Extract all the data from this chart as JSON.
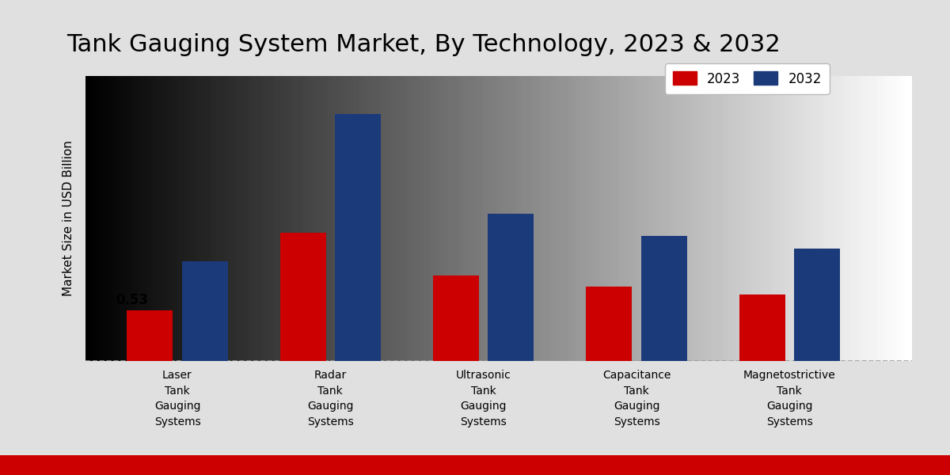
{
  "title": "Tank Gauging System Market, By Technology, 2023 & 2032",
  "ylabel": "Market Size in USD Billion",
  "categories": [
    "Laser\nTank\nGauging\nSystems",
    "Radar\nTank\nGauging\nSystems",
    "Ultrasonic\nTank\nGauging\nSystems",
    "Capacitance\nTank\nGauging\nSystems",
    "Magnetostrictive\nTank\nGauging\nSystems"
  ],
  "values_2023": [
    0.53,
    1.35,
    0.9,
    0.78,
    0.7
  ],
  "values_2032": [
    1.05,
    2.6,
    1.55,
    1.32,
    1.18
  ],
  "color_2023": "#cc0000",
  "color_2032": "#1a3a7a",
  "bar_annotation": "0.53",
  "annotation_bar_idx": 0,
  "legend_labels": [
    "2023",
    "2032"
  ],
  "title_fontsize": 22,
  "ylabel_fontsize": 11,
  "tick_fontsize": 10,
  "bar_width": 0.3,
  "ylim": [
    0,
    3.0
  ],
  "footer_color": "#cc0000",
  "dashed_line_color": "#999999",
  "bg_gray_light": 0.93,
  "bg_gray_dark": 0.8
}
